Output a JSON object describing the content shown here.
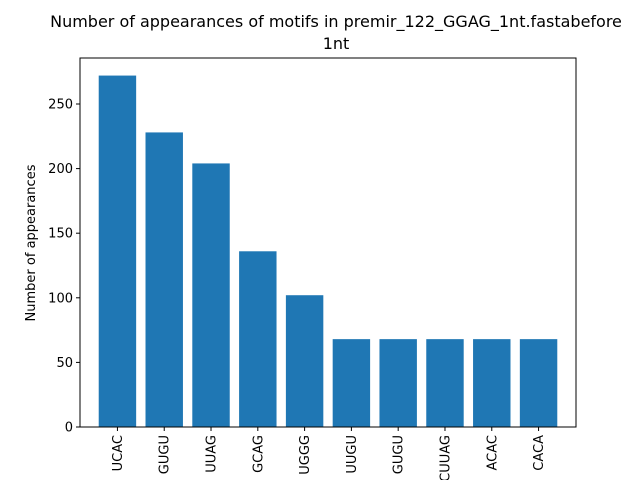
{
  "chart_data": {
    "type": "bar",
    "title_line1": "Number of appearances of motifs in premir_122_GGAG_1nt.fastabefore",
    "title_line2": "1nt",
    "xlabel": "",
    "ylabel": "Number of appearances",
    "categories": [
      "UCAC",
      "GUGU",
      "UUAG",
      "GCAG",
      "UGGG",
      "UUGU",
      "GUGU",
      "CUUAG",
      "ACAC",
      "CACA"
    ],
    "values": [
      272,
      228,
      204,
      136,
      102,
      68,
      68,
      68,
      68,
      68
    ],
    "ylim": [
      0,
      285.6
    ],
    "yticks": [
      0,
      50,
      100,
      150,
      200,
      250
    ],
    "grid": false,
    "bar_color": "#1f77b4"
  }
}
